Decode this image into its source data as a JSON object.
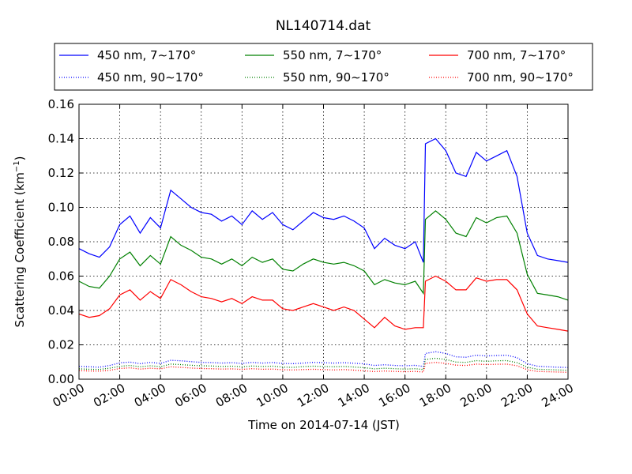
{
  "chart_data": {
    "type": "line",
    "title": "NL140714.dat",
    "xlabel": "Time on 2014-07-14 (JST)",
    "ylabel_main": "Scattering Coefficient (km",
    "ylabel_sup": "−1",
    "ylabel_end": ")",
    "xlim": [
      0,
      24
    ],
    "ylim": [
      0,
      0.16
    ],
    "grid": true,
    "legend_position": "top",
    "x_ticks": [
      0,
      2,
      4,
      6,
      8,
      10,
      12,
      14,
      16,
      18,
      20,
      22,
      24
    ],
    "x_tick_labels": [
      "00:00",
      "02:00",
      "04:00",
      "06:00",
      "08:00",
      "10:00",
      "12:00",
      "14:00",
      "16:00",
      "18:00",
      "20:00",
      "22:00",
      "24:00"
    ],
    "y_ticks": [
      0,
      0.02,
      0.04,
      0.06,
      0.08,
      0.1,
      0.12,
      0.14,
      0.16
    ],
    "y_tick_labels": [
      "0.00",
      "0.02",
      "0.04",
      "0.06",
      "0.08",
      "0.10",
      "0.12",
      "0.14",
      "0.16"
    ],
    "x": [
      0,
      0.5,
      1,
      1.5,
      2,
      2.5,
      3,
      3.5,
      4,
      4.5,
      5,
      5.5,
      6,
      6.5,
      7,
      7.5,
      8,
      8.5,
      9,
      9.5,
      10,
      10.5,
      11,
      11.5,
      12,
      12.5,
      13,
      13.5,
      14,
      14.5,
      15,
      15.5,
      16,
      16.5,
      16.9,
      17,
      17.5,
      18,
      18.5,
      19,
      19.5,
      20,
      20.5,
      21,
      21.5,
      22,
      22.5,
      23,
      23.5,
      24
    ],
    "series": [
      {
        "name": "450 nm, 7∼170°",
        "color": "#0000ff",
        "style": "solid",
        "values": [
          0.076,
          0.073,
          0.071,
          0.077,
          0.09,
          0.095,
          0.085,
          0.094,
          0.088,
          0.11,
          0.105,
          0.1,
          0.097,
          0.096,
          0.092,
          0.095,
          0.09,
          0.098,
          0.093,
          0.097,
          0.09,
          0.087,
          0.092,
          0.097,
          0.094,
          0.093,
          0.095,
          0.092,
          0.088,
          0.076,
          0.082,
          0.078,
          0.076,
          0.08,
          0.068,
          0.137,
          0.14,
          0.133,
          0.12,
          0.118,
          0.132,
          0.127,
          0.13,
          0.133,
          0.118,
          0.085,
          0.072,
          0.07,
          0.069,
          0.068
        ]
      },
      {
        "name": "550 nm, 7∼170°",
        "color": "#008000",
        "style": "solid",
        "values": [
          0.057,
          0.054,
          0.053,
          0.06,
          0.07,
          0.074,
          0.066,
          0.072,
          0.067,
          0.083,
          0.078,
          0.075,
          0.071,
          0.07,
          0.067,
          0.07,
          0.066,
          0.071,
          0.068,
          0.07,
          0.064,
          0.063,
          0.067,
          0.07,
          0.068,
          0.067,
          0.068,
          0.066,
          0.063,
          0.055,
          0.058,
          0.056,
          0.055,
          0.057,
          0.05,
          0.093,
          0.098,
          0.093,
          0.085,
          0.083,
          0.094,
          0.091,
          0.094,
          0.095,
          0.085,
          0.061,
          0.05,
          0.049,
          0.048,
          0.046
        ]
      },
      {
        "name": "700 nm, 7∼170°",
        "color": "#ff0000",
        "style": "solid",
        "values": [
          0.038,
          0.036,
          0.037,
          0.041,
          0.049,
          0.052,
          0.046,
          0.051,
          0.047,
          0.058,
          0.055,
          0.051,
          0.048,
          0.047,
          0.045,
          0.047,
          0.044,
          0.048,
          0.046,
          0.046,
          0.041,
          0.04,
          0.042,
          0.044,
          0.042,
          0.04,
          0.042,
          0.04,
          0.035,
          0.03,
          0.036,
          0.031,
          0.029,
          0.03,
          0.03,
          0.057,
          0.06,
          0.057,
          0.052,
          0.052,
          0.059,
          0.057,
          0.058,
          0.058,
          0.052,
          0.038,
          0.031,
          0.03,
          0.029,
          0.028
        ]
      },
      {
        "name": "450 nm, 90∼170°",
        "color": "#0000ff",
        "style": "dotted",
        "values": [
          0.0075,
          0.0072,
          0.007,
          0.008,
          0.0095,
          0.01,
          0.009,
          0.0098,
          0.0092,
          0.011,
          0.0107,
          0.0102,
          0.0098,
          0.0097,
          0.0094,
          0.0096,
          0.0092,
          0.0098,
          0.0094,
          0.0097,
          0.0092,
          0.009,
          0.0094,
          0.0098,
          0.0096,
          0.0094,
          0.0096,
          0.0093,
          0.0089,
          0.008,
          0.0084,
          0.008,
          0.0078,
          0.0081,
          0.0074,
          0.015,
          0.016,
          0.015,
          0.013,
          0.0128,
          0.014,
          0.0135,
          0.0138,
          0.014,
          0.0125,
          0.009,
          0.0076,
          0.0072,
          0.007,
          0.0068
        ]
      },
      {
        "name": "550 nm, 90∼170°",
        "color": "#008000",
        "style": "dotted",
        "values": [
          0.006,
          0.0058,
          0.0057,
          0.0064,
          0.0075,
          0.008,
          0.0072,
          0.0078,
          0.0073,
          0.0088,
          0.0085,
          0.0081,
          0.0078,
          0.0077,
          0.0074,
          0.0076,
          0.0072,
          0.0077,
          0.0074,
          0.0076,
          0.0071,
          0.0069,
          0.0073,
          0.0076,
          0.0074,
          0.0072,
          0.0074,
          0.0071,
          0.0067,
          0.006,
          0.0064,
          0.0061,
          0.0059,
          0.0061,
          0.0056,
          0.0115,
          0.0122,
          0.0115,
          0.01,
          0.0098,
          0.0108,
          0.0104,
          0.0107,
          0.0108,
          0.0096,
          0.007,
          0.0058,
          0.0056,
          0.0054,
          0.0052
        ]
      },
      {
        "name": "700 nm, 90∼170°",
        "color": "#ff0000",
        "style": "dotted",
        "values": [
          0.005,
          0.0048,
          0.0047,
          0.0052,
          0.0062,
          0.0066,
          0.0059,
          0.0064,
          0.006,
          0.0072,
          0.0069,
          0.0065,
          0.0062,
          0.0061,
          0.0059,
          0.006,
          0.0057,
          0.0061,
          0.0058,
          0.0059,
          0.0055,
          0.0054,
          0.0056,
          0.0058,
          0.0056,
          0.0054,
          0.0056,
          0.0053,
          0.0049,
          0.0044,
          0.0048,
          0.0045,
          0.0043,
          0.0045,
          0.0042,
          0.0092,
          0.0098,
          0.0092,
          0.0082,
          0.008,
          0.0088,
          0.0085,
          0.0087,
          0.0088,
          0.0078,
          0.0055,
          0.0045,
          0.0043,
          0.0042,
          0.004
        ]
      }
    ]
  }
}
